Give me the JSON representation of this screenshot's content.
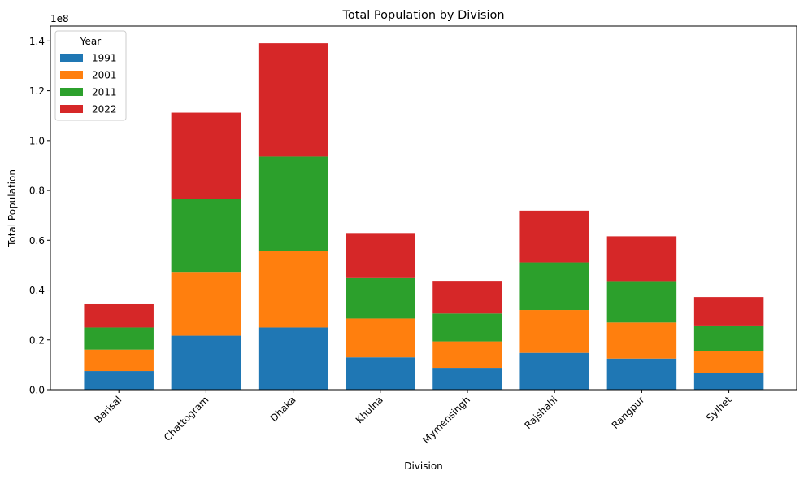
{
  "chart_data": {
    "type": "bar",
    "stacked": true,
    "title": "Total Population by Division",
    "xlabel": "Division",
    "ylabel": "Total Population",
    "y_scale_label": "1e8",
    "ylim": [
      0,
      146000000
    ],
    "y_ticks": [
      0,
      20000000,
      40000000,
      60000000,
      80000000,
      100000000,
      120000000,
      140000000
    ],
    "y_tick_labels": [
      "0.0",
      "0.2",
      "0.4",
      "0.6",
      "0.8",
      "1.0",
      "1.2",
      "1.4"
    ],
    "grid": false,
    "legend": {
      "title": "Year",
      "placement": "top-left"
    },
    "categories": [
      "Barisal",
      "Chattogram",
      "Dhaka",
      "Khulna",
      "Mymensingh",
      "Rajshahi",
      "Rangpur",
      "Sylhet"
    ],
    "series": [
      {
        "name": "1991",
        "color": "#1f77b4",
        "values": [
          7500000,
          21700000,
          25000000,
          13000000,
          8800000,
          14800000,
          12500000,
          6800000
        ]
      },
      {
        "name": "2001",
        "color": "#ff7f0e",
        "values": [
          8600000,
          25600000,
          30800000,
          15600000,
          10600000,
          17200000,
          14500000,
          8700000
        ]
      },
      {
        "name": "2011",
        "color": "#2ca02c",
        "values": [
          8900000,
          29200000,
          37800000,
          16200000,
          11200000,
          19100000,
          16300000,
          10000000
        ]
      },
      {
        "name": "2022",
        "color": "#d62728",
        "values": [
          9300000,
          34700000,
          45500000,
          17800000,
          12800000,
          20800000,
          18300000,
          11700000
        ]
      }
    ]
  }
}
